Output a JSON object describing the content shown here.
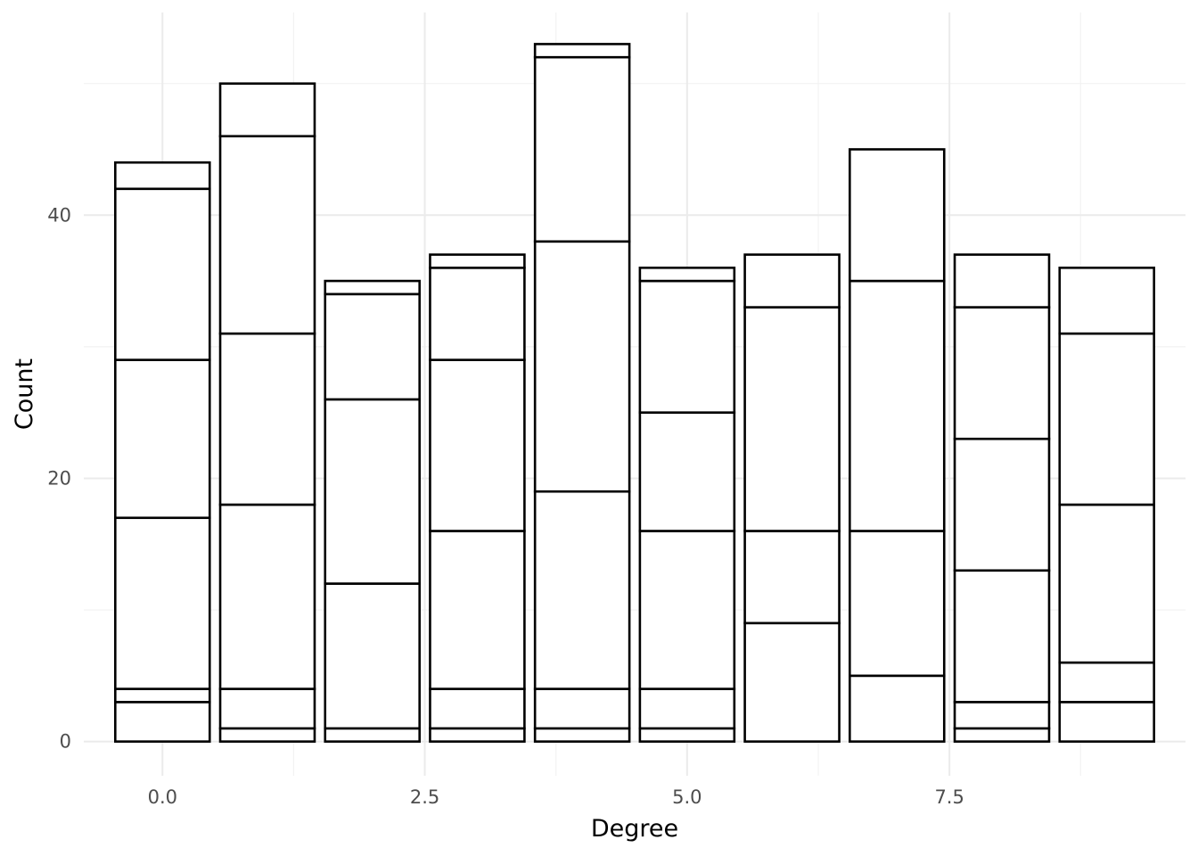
{
  "chart_data": {
    "type": "bar",
    "stacked": true,
    "xlabel": "Degree",
    "ylabel": "Count",
    "x": [
      0,
      1,
      2,
      3,
      4,
      5,
      6,
      7,
      8,
      9
    ],
    "xlim": [
      -0.75,
      9.75
    ],
    "ylim": [
      -2.6,
      55.4
    ],
    "x_ticks": [
      0.0,
      2.5,
      5.0,
      7.5
    ],
    "x_tick_labels": [
      "0.0",
      "2.5",
      "5.0",
      "7.5"
    ],
    "y_ticks": [
      0,
      20,
      40
    ],
    "y_tick_labels": [
      "0",
      "20",
      "40"
    ],
    "grid": true,
    "legend": "none",
    "fill_color": "#ffffff",
    "outline_color": "#000000",
    "stack_boundaries": [
      [
        3,
        4,
        17,
        29,
        42,
        44
      ],
      [
        1,
        4,
        18,
        31,
        46,
        50
      ],
      [
        1,
        12,
        26,
        34,
        35
      ],
      [
        1,
        4,
        16,
        29,
        36,
        37
      ],
      [
        1,
        4,
        19,
        38,
        52,
        53
      ],
      [
        1,
        4,
        16,
        25,
        35,
        36
      ],
      [
        9,
        16,
        33,
        37
      ],
      [
        5,
        16,
        35,
        45
      ],
      [
        1,
        3,
        13,
        23,
        33,
        37
      ],
      [
        3,
        6,
        18,
        31,
        36
      ]
    ]
  }
}
